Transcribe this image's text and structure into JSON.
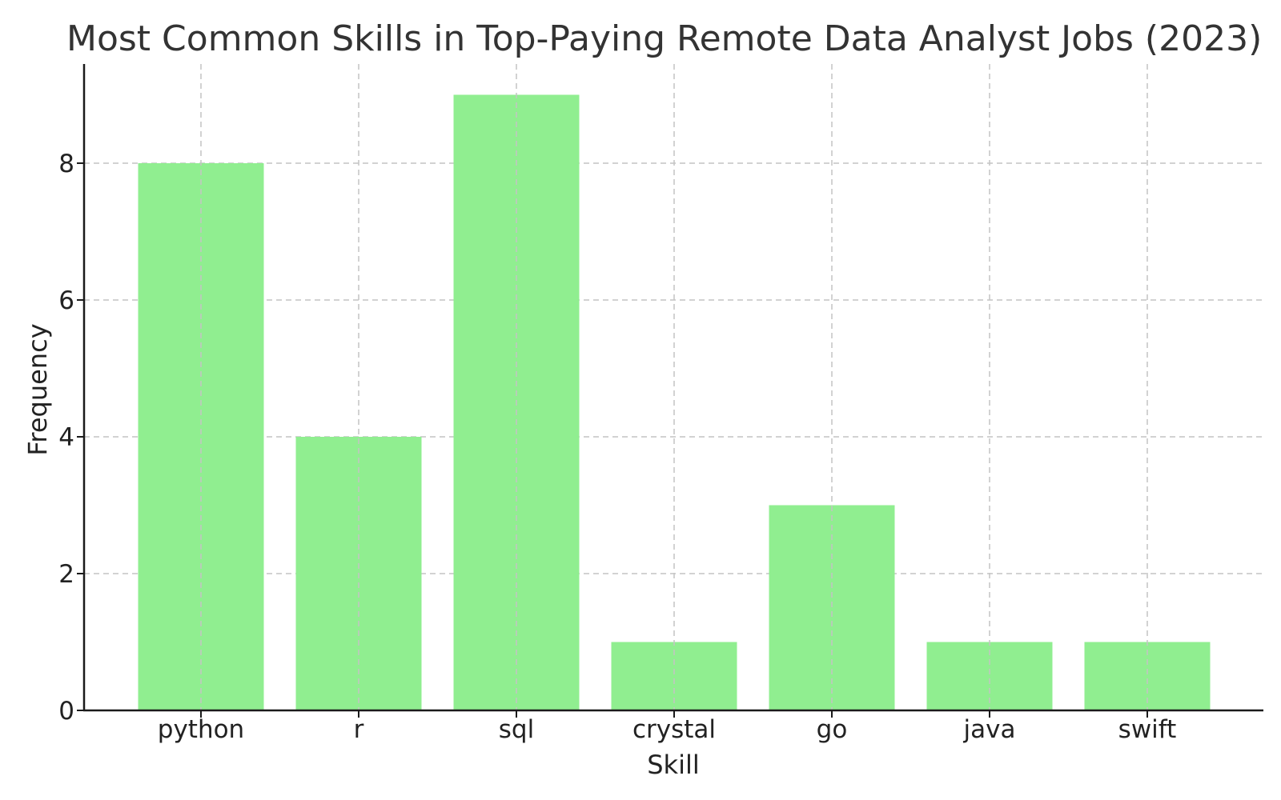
{
  "chart_data": {
    "type": "bar",
    "title": "Most Common Skills in Top-Paying Remote Data Analyst Jobs (2023)",
    "xlabel": "Skill",
    "ylabel": "Frequency",
    "categories": [
      "python",
      "r",
      "sql",
      "crystal",
      "go",
      "java",
      "swift"
    ],
    "values": [
      8,
      4,
      9,
      1,
      3,
      1,
      1
    ],
    "ylim": [
      0,
      9.45
    ],
    "yticks": [
      0,
      2,
      4,
      6,
      8
    ],
    "grid": true,
    "bar_color": "#90ee90"
  }
}
